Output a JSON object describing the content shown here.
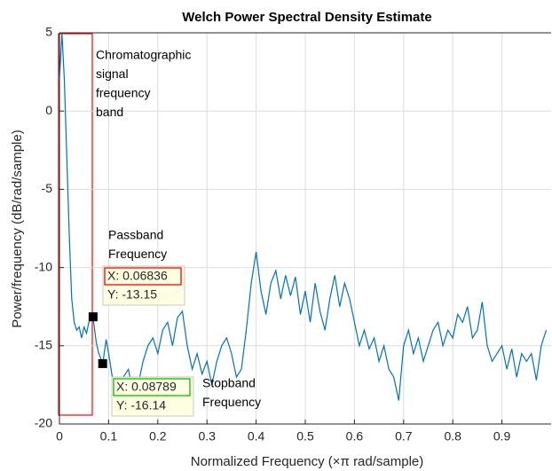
{
  "chart_data": {
    "type": "line",
    "title": "Welch Power Spectral Density Estimate",
    "x_label": "Normalized Frequency  (×π rad/sample)",
    "y_label": "Power/frequency (dB/rad/sample)",
    "xlim": [
      0,
      1
    ],
    "ylim": [
      -20,
      5
    ],
    "xticks": [
      0,
      0.1,
      0.2,
      0.3,
      0.4,
      0.5,
      0.6,
      0.7,
      0.8,
      0.9
    ],
    "yticks": [
      5,
      0,
      -5,
      -10,
      -15,
      -20
    ],
    "grid": true,
    "series": [
      {
        "color": "#0072bd",
        "x": [
          0,
          0.005,
          0.01,
          0.015,
          0.02,
          0.025,
          0.03,
          0.035,
          0.04,
          0.045,
          0.05,
          0.055,
          0.06,
          0.068,
          0.075,
          0.08,
          0.088,
          0.095,
          0.1,
          0.11,
          0.12,
          0.13,
          0.14,
          0.15,
          0.16,
          0.17,
          0.18,
          0.19,
          0.2,
          0.21,
          0.22,
          0.23,
          0.24,
          0.25,
          0.26,
          0.27,
          0.28,
          0.29,
          0.3,
          0.31,
          0.32,
          0.33,
          0.34,
          0.35,
          0.36,
          0.37,
          0.38,
          0.39,
          0.4,
          0.41,
          0.42,
          0.43,
          0.44,
          0.45,
          0.46,
          0.47,
          0.48,
          0.49,
          0.5,
          0.51,
          0.52,
          0.53,
          0.54,
          0.55,
          0.56,
          0.57,
          0.58,
          0.59,
          0.6,
          0.61,
          0.62,
          0.63,
          0.64,
          0.65,
          0.66,
          0.67,
          0.68,
          0.69,
          0.7,
          0.71,
          0.72,
          0.73,
          0.74,
          0.75,
          0.76,
          0.77,
          0.78,
          0.79,
          0.8,
          0.81,
          0.82,
          0.83,
          0.84,
          0.85,
          0.86,
          0.87,
          0.88,
          0.89,
          0.9,
          0.91,
          0.92,
          0.93,
          0.94,
          0.95,
          0.96,
          0.97,
          0.98,
          0.99
        ],
        "values": [
          2,
          5,
          2,
          -3,
          -8,
          -12,
          -13.5,
          -14,
          -13.8,
          -14.5,
          -13.8,
          -14.2,
          -13.5,
          -13.15,
          -14.8,
          -15.5,
          -16.14,
          -14.6,
          -15.5,
          -17.5,
          -17.8,
          -17,
          -16.5,
          -18,
          -17.5,
          -16,
          -15,
          -14.5,
          -15.5,
          -14,
          -13.5,
          -15,
          -13.2,
          -12.8,
          -15,
          -16.5,
          -15.5,
          -16.8,
          -16,
          -17.5,
          -16,
          -15,
          -14.5,
          -15.5,
          -17,
          -16.5,
          -14,
          -11,
          -9,
          -11.5,
          -13,
          -11,
          -10.2,
          -12,
          -10.5,
          -11.8,
          -10.6,
          -13,
          -11.5,
          -13.5,
          -11,
          -12.8,
          -14,
          -12,
          -10.5,
          -12.5,
          -11,
          -12,
          -13.5,
          -15,
          -14,
          -15.2,
          -14.5,
          -16,
          -15,
          -16.5,
          -17,
          -18.5,
          -15,
          -14,
          -15.5,
          -14.5,
          -16,
          -15,
          -14,
          -13.5,
          -15,
          -14,
          -14.5,
          -13,
          -13.5,
          -12.5,
          -14.5,
          -14,
          -12.2,
          -15,
          -16,
          -15.5,
          -15,
          -16.5,
          -15.2,
          -17,
          -15.5,
          -16,
          -15.5,
          -17.2,
          -15,
          -14
        ]
      }
    ],
    "datatips": [
      {
        "x": 0.06836,
        "y": -13.15,
        "x_text": "X: 0.06836",
        "y_text": "Y: -13.15",
        "color": "#ff0000"
      },
      {
        "x": 0.08789,
        "y": -16.14,
        "x_text": "X: 0.08789",
        "y_text": "Y: -16.14",
        "color": "#00c000"
      }
    ],
    "annotations": {
      "band": [
        "Chromatographic",
        "signal",
        "frequency",
        "band"
      ],
      "passband": [
        "Passband",
        "Frequency"
      ],
      "stopband": [
        "Stopband",
        "Frequency"
      ]
    }
  }
}
